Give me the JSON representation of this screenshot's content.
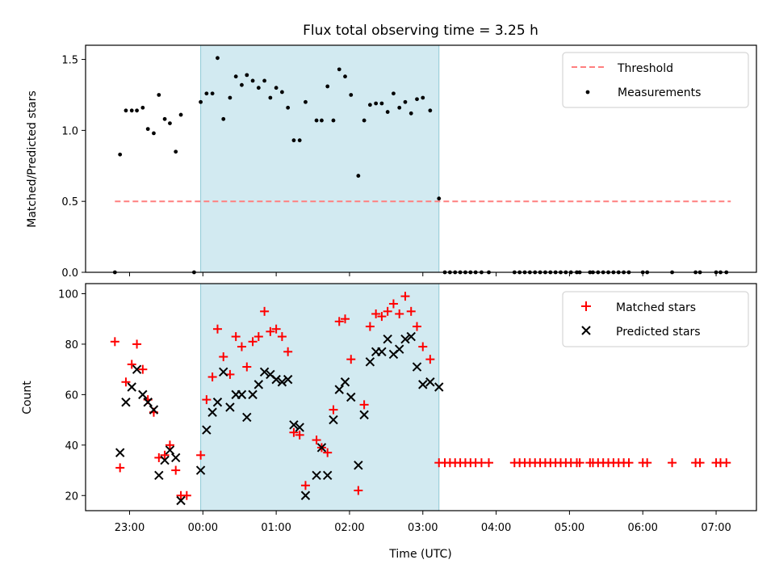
{
  "chart_data": [
    {
      "type": "scatter",
      "title": "Flux total observing time = 3.25 h",
      "xlabel": "",
      "ylabel": "Matched/Predicted stars",
      "ylim": [
        0,
        1.6
      ],
      "yticks": [
        0.0,
        0.5,
        1.0,
        1.5
      ],
      "ytick_labels": [
        "0.0",
        "0.5",
        "1.0",
        "1.5"
      ],
      "x_unit": "hours since 00:00 UTC",
      "shaded_span": [
        -0.03,
        3.22
      ],
      "shade_color": "#add8e6",
      "threshold": {
        "name": "Threshold",
        "y": 0.5,
        "x_range": [
          -1.2,
          7.2
        ],
        "color": "#ff7f7f",
        "style": "dashed"
      },
      "series": [
        {
          "name": "Measurements",
          "color": "#000000",
          "marker": "dot",
          "points": [
            [
              -1.2,
              0.0
            ],
            [
              -1.13,
              0.83
            ],
            [
              -1.05,
              1.14
            ],
            [
              -0.97,
              1.14
            ],
            [
              -0.9,
              1.14
            ],
            [
              -0.82,
              1.16
            ],
            [
              -0.75,
              1.01
            ],
            [
              -0.67,
              0.98
            ],
            [
              -0.6,
              1.25
            ],
            [
              -0.52,
              1.08
            ],
            [
              -0.45,
              1.05
            ],
            [
              -0.37,
              0.85
            ],
            [
              -0.3,
              1.11
            ],
            [
              -0.12,
              0.0
            ],
            [
              -0.03,
              1.2
            ],
            [
              0.05,
              1.26
            ],
            [
              0.13,
              1.26
            ],
            [
              0.2,
              1.51
            ],
            [
              0.28,
              1.08
            ],
            [
              0.37,
              1.23
            ],
            [
              0.45,
              1.38
            ],
            [
              0.53,
              1.32
            ],
            [
              0.6,
              1.39
            ],
            [
              0.68,
              1.35
            ],
            [
              0.76,
              1.3
            ],
            [
              0.84,
              1.35
            ],
            [
              0.92,
              1.23
            ],
            [
              1.0,
              1.3
            ],
            [
              1.08,
              1.27
            ],
            [
              1.16,
              1.16
            ],
            [
              1.24,
              0.93
            ],
            [
              1.32,
              0.93
            ],
            [
              1.4,
              1.2
            ],
            [
              1.55,
              1.07
            ],
            [
              1.62,
              1.07
            ],
            [
              1.7,
              1.31
            ],
            [
              1.78,
              1.07
            ],
            [
              1.86,
              1.43
            ],
            [
              1.94,
              1.38
            ],
            [
              2.02,
              1.25
            ],
            [
              2.12,
              0.68
            ],
            [
              2.2,
              1.07
            ],
            [
              2.28,
              1.18
            ],
            [
              2.36,
              1.19
            ],
            [
              2.44,
              1.19
            ],
            [
              2.52,
              1.13
            ],
            [
              2.6,
              1.26
            ],
            [
              2.68,
              1.16
            ],
            [
              2.76,
              1.2
            ],
            [
              2.84,
              1.12
            ],
            [
              2.92,
              1.22
            ],
            [
              3.0,
              1.23
            ],
            [
              3.1,
              1.14
            ],
            [
              3.22,
              0.52
            ],
            [
              3.3,
              0.0
            ],
            [
              3.37,
              0.0
            ],
            [
              3.44,
              0.0
            ],
            [
              3.51,
              0.0
            ],
            [
              3.58,
              0.0
            ],
            [
              3.65,
              0.0
            ],
            [
              3.72,
              0.0
            ],
            [
              3.8,
              0.0
            ],
            [
              3.9,
              0.0
            ],
            [
              4.25,
              0.0
            ],
            [
              4.32,
              0.0
            ],
            [
              4.39,
              0.0
            ],
            [
              4.46,
              0.0
            ],
            [
              4.53,
              0.0
            ],
            [
              4.6,
              0.0
            ],
            [
              4.67,
              0.0
            ],
            [
              4.74,
              0.0
            ],
            [
              4.81,
              0.0
            ],
            [
              4.88,
              0.0
            ],
            [
              4.95,
              0.0
            ],
            [
              5.02,
              0.0
            ],
            [
              5.1,
              0.0
            ],
            [
              5.14,
              0.0
            ],
            [
              5.28,
              0.0
            ],
            [
              5.32,
              0.0
            ],
            [
              5.39,
              0.0
            ],
            [
              5.46,
              0.0
            ],
            [
              5.53,
              0.0
            ],
            [
              5.6,
              0.0
            ],
            [
              5.67,
              0.0
            ],
            [
              5.74,
              0.0
            ],
            [
              5.81,
              0.0
            ],
            [
              6.0,
              0.0
            ],
            [
              6.06,
              0.0
            ],
            [
              6.4,
              0.0
            ],
            [
              6.72,
              0.0
            ],
            [
              6.78,
              0.0
            ],
            [
              7.0,
              0.0
            ],
            [
              7.06,
              0.0
            ],
            [
              7.14,
              0.0
            ]
          ]
        }
      ],
      "legend": {
        "position": "upper right",
        "entries": [
          "Threshold",
          "Measurements"
        ]
      }
    },
    {
      "type": "scatter",
      "title": "",
      "xlabel": "Time (UTC)",
      "ylabel": "Count",
      "xlim": [
        -1.6,
        7.55
      ],
      "ylim": [
        14,
        104
      ],
      "xticks": [
        -1,
        0,
        1,
        2,
        3,
        4,
        5,
        6,
        7
      ],
      "xtick_labels": [
        "23:00",
        "00:00",
        "01:00",
        "02:00",
        "03:00",
        "04:00",
        "05:00",
        "06:00",
        "07:00"
      ],
      "yticks": [
        20,
        40,
        60,
        80,
        100
      ],
      "ytick_labels": [
        "20",
        "40",
        "60",
        "80",
        "100"
      ],
      "shaded_span": [
        -0.03,
        3.22
      ],
      "shade_color": "#add8e6",
      "series": [
        {
          "name": "Matched stars",
          "color": "#ff0000",
          "marker": "plus",
          "points": [
            [
              -1.2,
              81
            ],
            [
              -1.13,
              31
            ],
            [
              -1.05,
              65
            ],
            [
              -0.97,
              72
            ],
            [
              -0.9,
              80
            ],
            [
              -0.82,
              70
            ],
            [
              -0.75,
              58
            ],
            [
              -0.67,
              53
            ],
            [
              -0.6,
              35
            ],
            [
              -0.52,
              36
            ],
            [
              -0.45,
              40
            ],
            [
              -0.37,
              30
            ],
            [
              -0.3,
              20
            ],
            [
              -0.22,
              20
            ],
            [
              -0.03,
              36
            ],
            [
              0.05,
              58
            ],
            [
              0.13,
              67
            ],
            [
              0.2,
              86
            ],
            [
              0.28,
              75
            ],
            [
              0.37,
              68
            ],
            [
              0.45,
              83
            ],
            [
              0.53,
              79
            ],
            [
              0.6,
              71
            ],
            [
              0.68,
              81
            ],
            [
              0.76,
              83
            ],
            [
              0.84,
              93
            ],
            [
              0.92,
              85
            ],
            [
              1.0,
              86
            ],
            [
              1.08,
              83
            ],
            [
              1.16,
              77
            ],
            [
              1.24,
              45
            ],
            [
              1.32,
              44
            ],
            [
              1.4,
              24
            ],
            [
              1.55,
              42
            ],
            [
              1.62,
              39
            ],
            [
              1.7,
              37
            ],
            [
              1.78,
              54
            ],
            [
              1.86,
              89
            ],
            [
              1.94,
              90
            ],
            [
              2.02,
              74
            ],
            [
              2.12,
              22
            ],
            [
              2.2,
              56
            ],
            [
              2.28,
              87
            ],
            [
              2.36,
              92
            ],
            [
              2.44,
              91
            ],
            [
              2.52,
              93
            ],
            [
              2.6,
              96
            ],
            [
              2.68,
              92
            ],
            [
              2.76,
              99
            ],
            [
              2.84,
              93
            ],
            [
              2.92,
              87
            ],
            [
              3.0,
              79
            ],
            [
              3.1,
              74
            ],
            [
              3.22,
              33
            ],
            [
              3.3,
              33
            ],
            [
              3.37,
              33
            ],
            [
              3.44,
              33
            ],
            [
              3.51,
              33
            ],
            [
              3.58,
              33
            ],
            [
              3.65,
              33
            ],
            [
              3.72,
              33
            ],
            [
              3.8,
              33
            ],
            [
              3.9,
              33
            ],
            [
              4.25,
              33
            ],
            [
              4.32,
              33
            ],
            [
              4.39,
              33
            ],
            [
              4.46,
              33
            ],
            [
              4.53,
              33
            ],
            [
              4.6,
              33
            ],
            [
              4.67,
              33
            ],
            [
              4.74,
              33
            ],
            [
              4.81,
              33
            ],
            [
              4.88,
              33
            ],
            [
              4.95,
              33
            ],
            [
              5.02,
              33
            ],
            [
              5.1,
              33
            ],
            [
              5.14,
              33
            ],
            [
              5.28,
              33
            ],
            [
              5.32,
              33
            ],
            [
              5.39,
              33
            ],
            [
              5.46,
              33
            ],
            [
              5.53,
              33
            ],
            [
              5.6,
              33
            ],
            [
              5.67,
              33
            ],
            [
              5.74,
              33
            ],
            [
              5.81,
              33
            ],
            [
              6.0,
              33
            ],
            [
              6.06,
              33
            ],
            [
              6.4,
              33
            ],
            [
              6.72,
              33
            ],
            [
              6.78,
              33
            ],
            [
              7.0,
              33
            ],
            [
              7.06,
              33
            ],
            [
              7.14,
              33
            ]
          ]
        },
        {
          "name": "Predicted stars",
          "color": "#000000",
          "marker": "x",
          "points": [
            [
              -1.13,
              37
            ],
            [
              -1.05,
              57
            ],
            [
              -0.97,
              63
            ],
            [
              -0.9,
              70
            ],
            [
              -0.82,
              60
            ],
            [
              -0.75,
              57
            ],
            [
              -0.67,
              54
            ],
            [
              -0.6,
              28
            ],
            [
              -0.52,
              34
            ],
            [
              -0.45,
              38
            ],
            [
              -0.37,
              35
            ],
            [
              -0.3,
              18
            ],
            [
              -0.03,
              30
            ],
            [
              0.05,
              46
            ],
            [
              0.13,
              53
            ],
            [
              0.2,
              57
            ],
            [
              0.28,
              69
            ],
            [
              0.37,
              55
            ],
            [
              0.45,
              60
            ],
            [
              0.53,
              60
            ],
            [
              0.6,
              51
            ],
            [
              0.68,
              60
            ],
            [
              0.76,
              64
            ],
            [
              0.84,
              69
            ],
            [
              0.92,
              68
            ],
            [
              1.0,
              66
            ],
            [
              1.08,
              65
            ],
            [
              1.16,
              66
            ],
            [
              1.24,
              48
            ],
            [
              1.32,
              47
            ],
            [
              1.4,
              20
            ],
            [
              1.55,
              28
            ],
            [
              1.62,
              39
            ],
            [
              1.7,
              28
            ],
            [
              1.78,
              50
            ],
            [
              1.86,
              62
            ],
            [
              1.94,
              65
            ],
            [
              2.02,
              59
            ],
            [
              2.12,
              32
            ],
            [
              2.2,
              52
            ],
            [
              2.28,
              73
            ],
            [
              2.36,
              77
            ],
            [
              2.44,
              77
            ],
            [
              2.52,
              82
            ],
            [
              2.6,
              76
            ],
            [
              2.68,
              78
            ],
            [
              2.76,
              82
            ],
            [
              2.84,
              83
            ],
            [
              2.92,
              71
            ],
            [
              3.0,
              64
            ],
            [
              3.1,
              65
            ],
            [
              3.22,
              63
            ]
          ]
        }
      ],
      "legend": {
        "position": "upper right",
        "entries": [
          "Matched stars",
          "Predicted stars"
        ]
      }
    }
  ]
}
